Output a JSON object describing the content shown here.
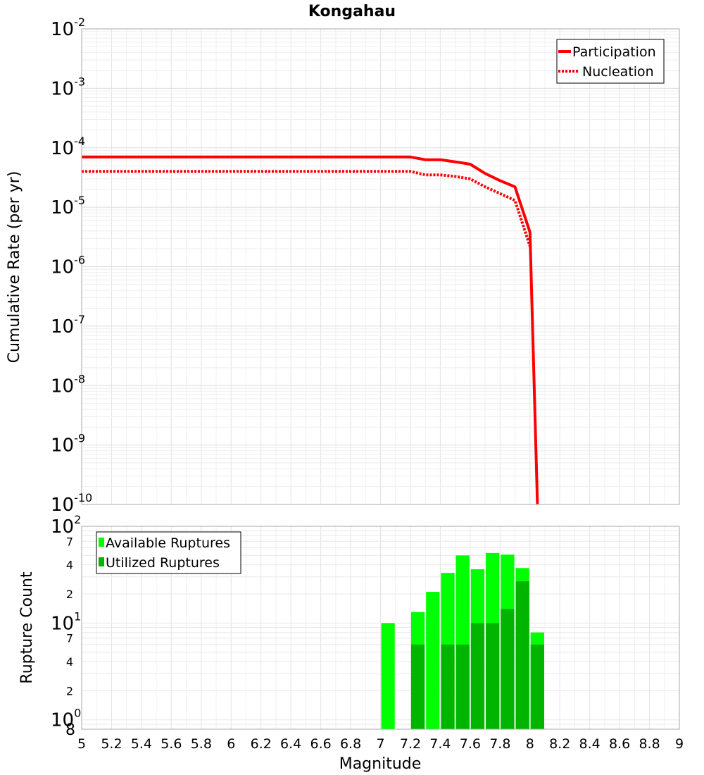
{
  "chart_data": [
    {
      "type": "line",
      "title": "Kongahau",
      "ylabel": "Cumulative Rate (per yr)",
      "xlabel": "",
      "yscale": "log",
      "xlim": [
        5,
        9
      ],
      "ylim": [
        1e-10,
        0.01
      ],
      "y_tick_bases": [
        "10",
        "10",
        "10",
        "10",
        "10",
        "10",
        "10",
        "10",
        "10"
      ],
      "y_tick_exponents": [
        "-10",
        "-9",
        "-8",
        "-7",
        "-6",
        "-5",
        "-4",
        "-3",
        "-2"
      ],
      "legend": {
        "position": "top-right",
        "entries": [
          "Participation",
          "Nucleation"
        ]
      },
      "series": [
        {
          "name": "Participation",
          "style": "solid",
          "color": "#ff0000",
          "x": [
            5.0,
            7.2,
            7.3,
            7.4,
            7.5,
            7.6,
            7.7,
            7.8,
            7.9,
            8.0,
            8.05
          ],
          "y": [
            7e-05,
            7e-05,
            6.3e-05,
            6.3e-05,
            5.8e-05,
            5.3e-05,
            3.7e-05,
            2.8e-05,
            2.2e-05,
            3.8e-06,
            1e-10
          ]
        },
        {
          "name": "Nucleation",
          "style": "dotted",
          "color": "#ff0000",
          "x": [
            5.0,
            7.2,
            7.3,
            7.4,
            7.5,
            7.6,
            7.7,
            7.8,
            7.9,
            8.0
          ],
          "y": [
            4e-05,
            4e-05,
            3.5e-05,
            3.5e-05,
            3.3e-05,
            3e-05,
            2.2e-05,
            1.7e-05,
            1.3e-05,
            2.2e-06
          ]
        }
      ]
    },
    {
      "type": "bar",
      "ylabel": "Rupture Count",
      "xlabel": "Magnitude",
      "yscale": "log",
      "xlim": [
        5,
        9
      ],
      "ylim": [
        0.8,
        100
      ],
      "x_ticks": [
        "5",
        "5.2",
        "5.4",
        "5.6",
        "5.8",
        "6",
        "6.2",
        "6.4",
        "6.6",
        "6.8",
        "7",
        "7.2",
        "7.4",
        "7.6",
        "7.8",
        "8",
        "8.2",
        "8.4",
        "8.6",
        "8.8",
        "9"
      ],
      "y_major_bases": [
        "10",
        "10",
        "10"
      ],
      "y_major_exponents": [
        "0",
        "1",
        "2"
      ],
      "y_minor_labels": [
        "8",
        "2",
        "4",
        "7",
        "2",
        "4",
        "7"
      ],
      "legend": {
        "position": "top-left",
        "entries": [
          "Available Ruptures",
          "Utilized Ruptures"
        ]
      },
      "colors": {
        "available": "#00ff00",
        "utilized": "#00b400"
      },
      "bar_width": 0.1,
      "bins": [
        7.05,
        7.25,
        7.35,
        7.45,
        7.55,
        7.65,
        7.75,
        7.85,
        7.95,
        8.05
      ],
      "series": [
        {
          "name": "Available Ruptures",
          "values": [
            10,
            13,
            21,
            33,
            50,
            36,
            53,
            51,
            37,
            8
          ]
        },
        {
          "name": "Utilized Ruptures",
          "values": [
            0,
            6,
            0,
            6,
            6,
            10,
            10,
            14,
            27,
            6
          ]
        }
      ]
    }
  ]
}
